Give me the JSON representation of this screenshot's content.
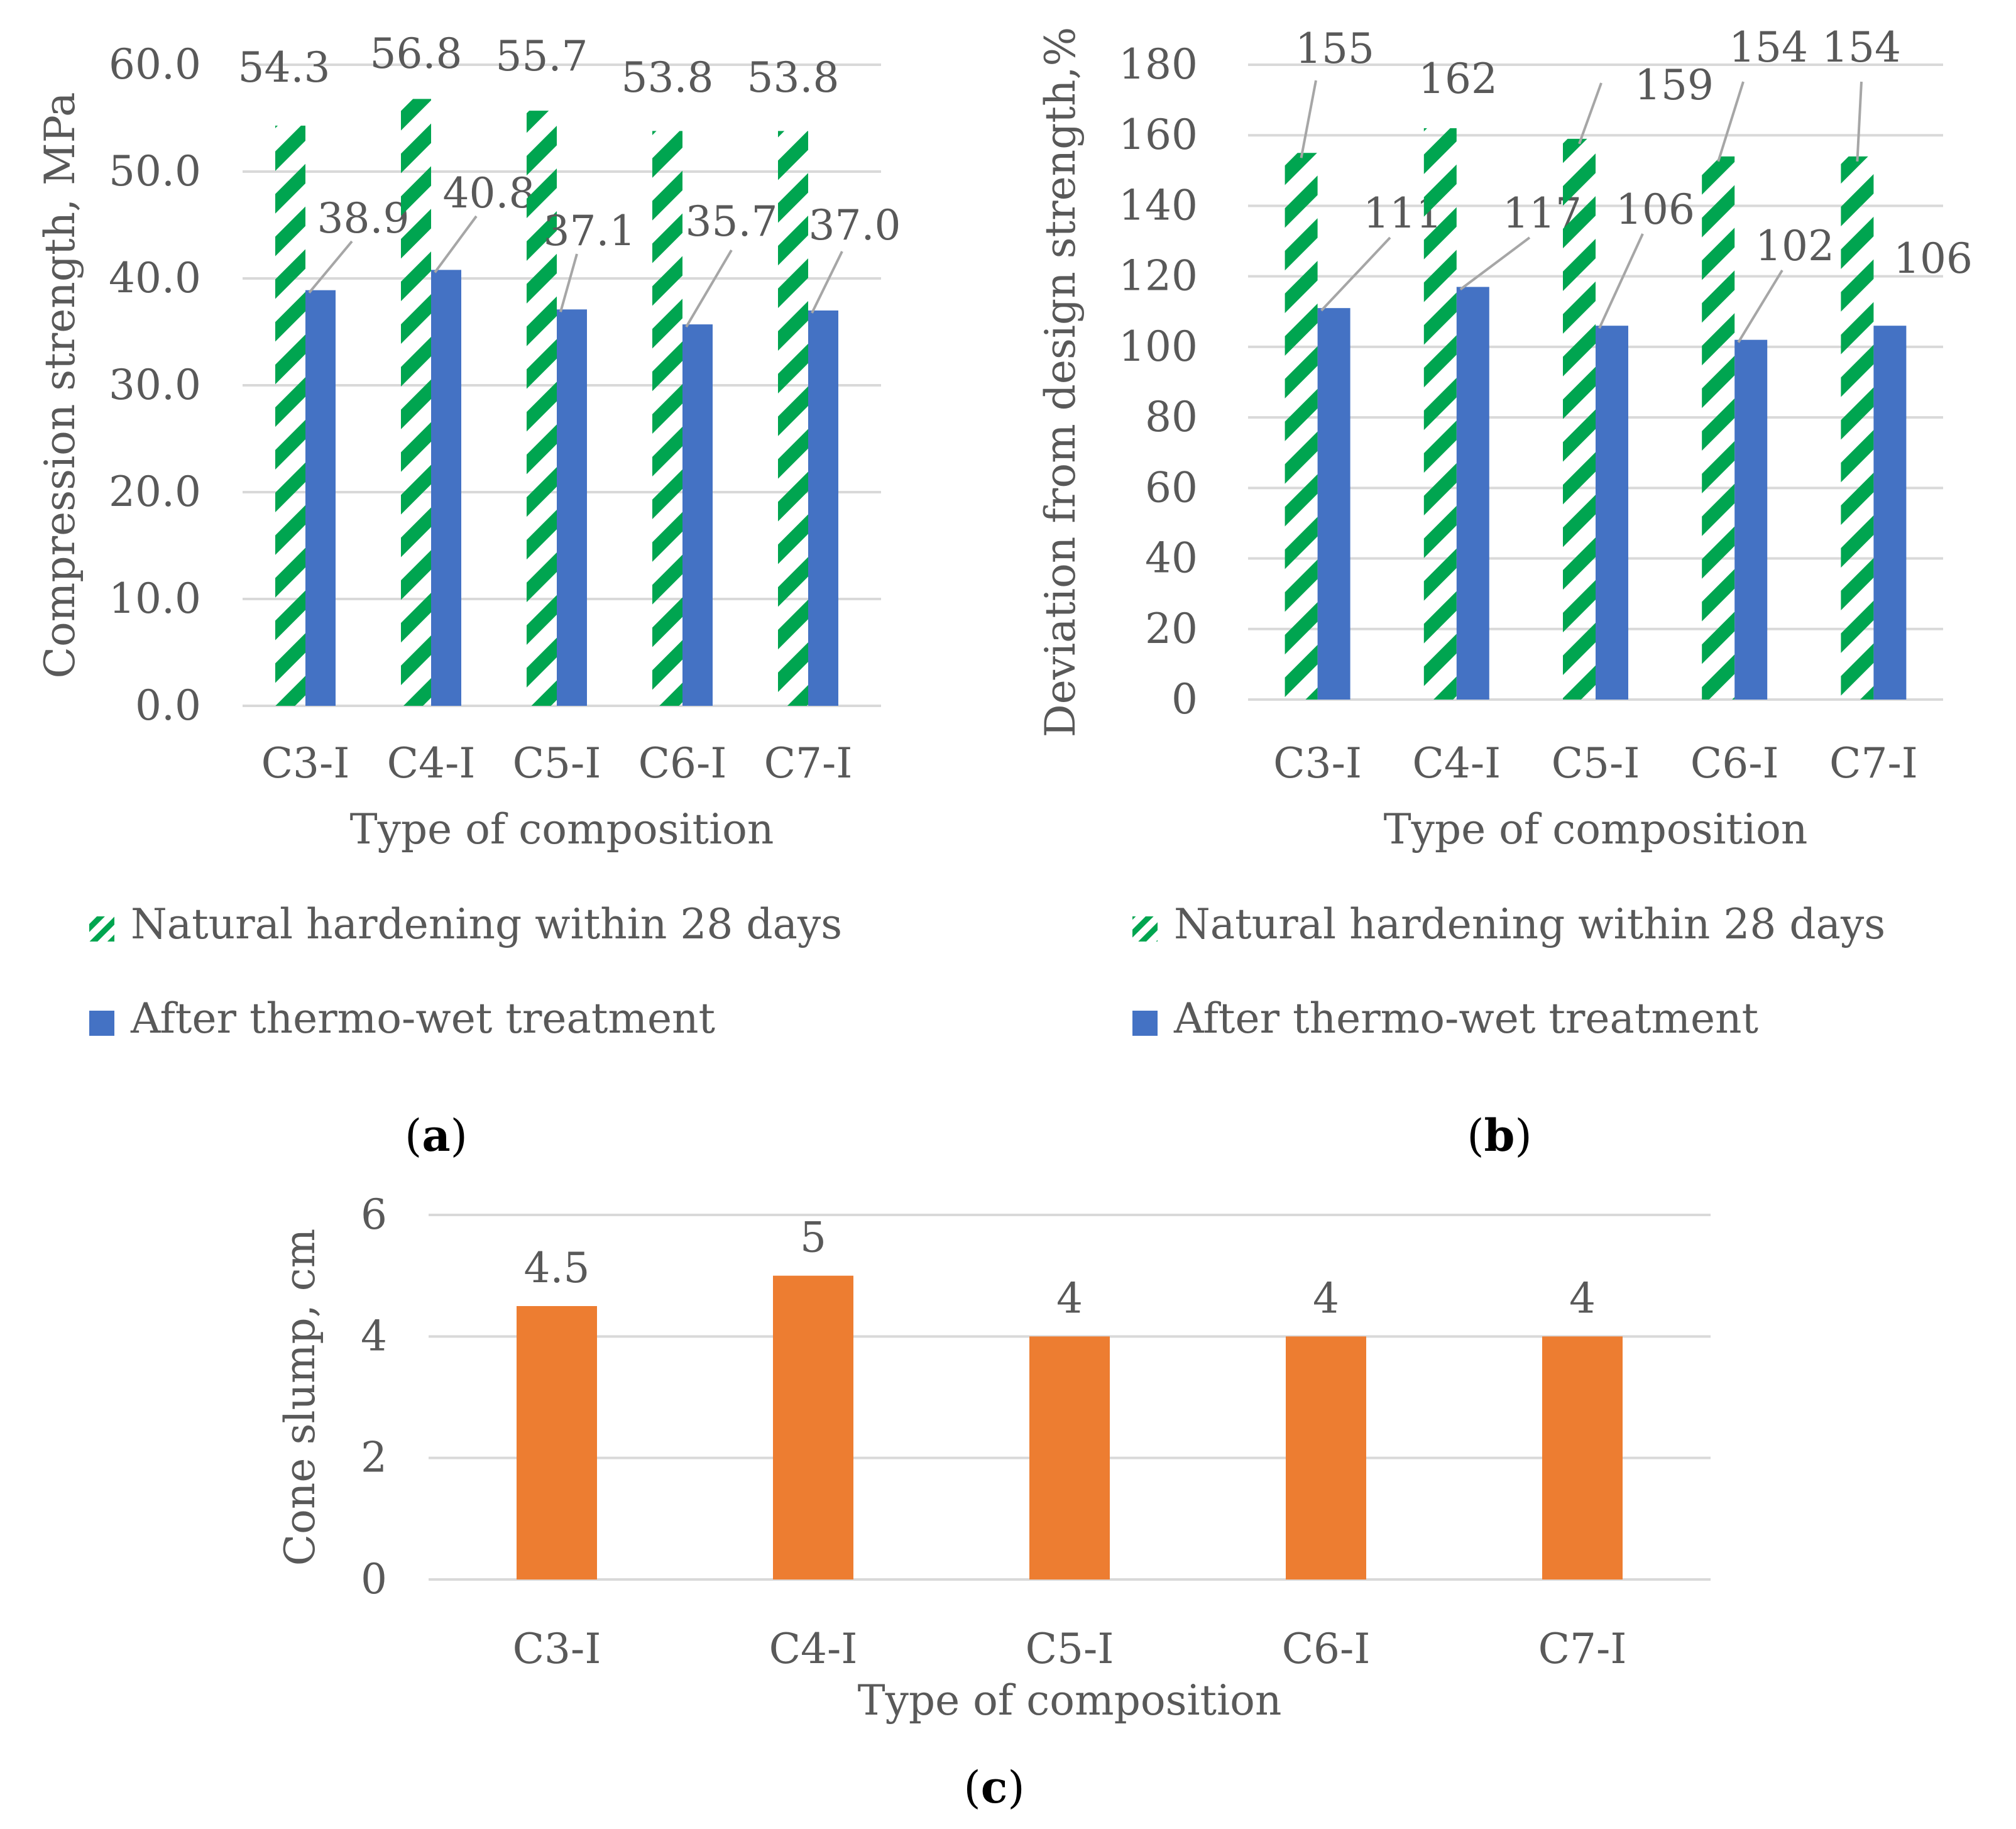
{
  "colors": {
    "green": "#00A550",
    "blue": "#4472C4",
    "orange": "#ED7D31",
    "grid": "#D9D9D9",
    "text": "#595959",
    "leader": "#A6A6A6"
  },
  "panels": {
    "a": "a",
    "b": "b",
    "c": "c"
  },
  "chart_data": [
    {
      "id": "a",
      "type": "bar",
      "ylabel": "Compression strength, MPa",
      "xlabel": "Type of composition",
      "ylim": [
        0,
        60
      ],
      "yticks": [
        "0.0",
        "10.0",
        "20.0",
        "30.0",
        "40.0",
        "50.0",
        "60.0"
      ],
      "categories": [
        "C3-I",
        "C4-I",
        "C5-I",
        "C6-I",
        "C7-I"
      ],
      "legend_position": "bottom",
      "series": [
        {
          "name": "Natural hardening within 28 days",
          "style": "hatched-green",
          "values": [
            54.3,
            56.8,
            55.7,
            53.8,
            53.8
          ],
          "labels": [
            "54.3",
            "56.8",
            "55.7",
            "53.8",
            "53.8"
          ]
        },
        {
          "name": "After thermo-wet treatment",
          "style": "solid-blue",
          "values": [
            38.9,
            40.8,
            37.1,
            35.7,
            37.0
          ],
          "labels": [
            "38.9",
            "40.8",
            "37.1",
            "35.7",
            "37.0"
          ]
        }
      ]
    },
    {
      "id": "b",
      "type": "bar",
      "ylabel": "Deviation from design strength,%",
      "xlabel": "Type of composition",
      "ylim": [
        0,
        180
      ],
      "yticks": [
        "0",
        "20",
        "40",
        "60",
        "80",
        "100",
        "120",
        "140",
        "160",
        "180"
      ],
      "categories": [
        "C3-I",
        "C4-I",
        "C5-I",
        "C6-I",
        "C7-I"
      ],
      "legend_position": "bottom",
      "series": [
        {
          "name": "Natural hardening within 28 days",
          "style": "hatched-green",
          "values": [
            155,
            162,
            159,
            154,
            154
          ],
          "labels": [
            "155",
            "162",
            "159",
            "154",
            "154"
          ]
        },
        {
          "name": "After thermo-wet treatment",
          "style": "solid-blue",
          "values": [
            111,
            117,
            106,
            102,
            106
          ],
          "labels": [
            "111",
            "117",
            "106",
            "102",
            "106"
          ]
        }
      ]
    },
    {
      "id": "c",
      "type": "bar",
      "ylabel": "Cone slump, cm",
      "xlabel": "Type of composition",
      "ylim": [
        0,
        6
      ],
      "yticks": [
        "0",
        "2",
        "4",
        "6"
      ],
      "categories": [
        "C3-I",
        "C4-I",
        "C5-I",
        "C6-I",
        "C7-I"
      ],
      "series": [
        {
          "name": "Cone slump",
          "style": "solid-orange",
          "values": [
            4.5,
            5,
            4,
            4,
            4
          ],
          "labels": [
            "4.5",
            "5",
            "4",
            "4",
            "4"
          ]
        }
      ]
    }
  ]
}
